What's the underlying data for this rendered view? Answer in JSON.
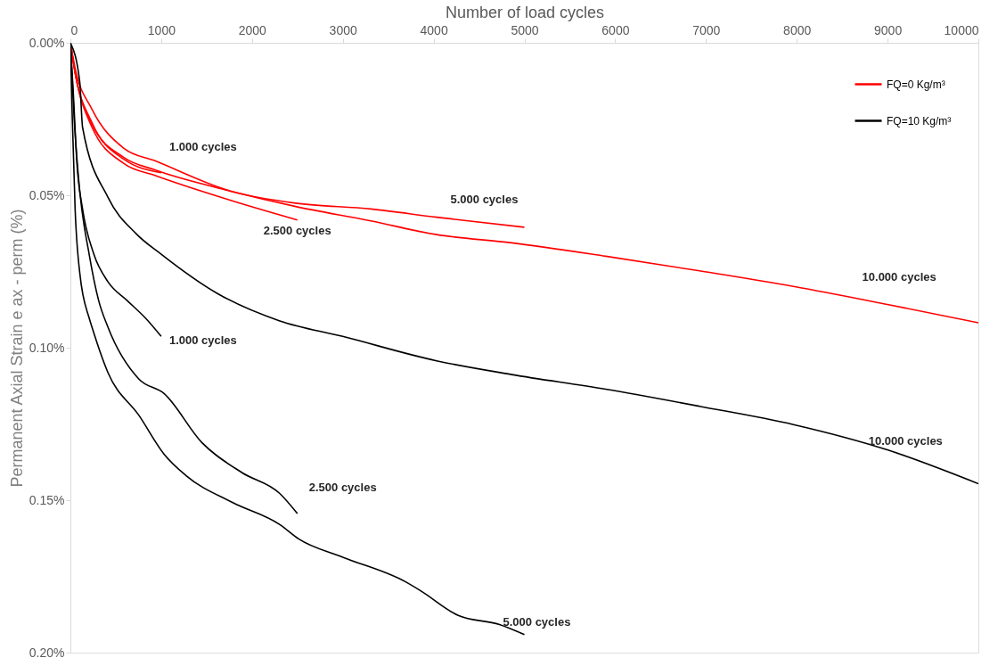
{
  "chart_data": {
    "type": "line",
    "xlabel": "Number of load cycles",
    "ylabel": "Permanent Axial Strain e ax - perm (%)",
    "xlim": [
      0,
      10000
    ],
    "xticks": [
      0,
      1000,
      2000,
      3000,
      4000,
      5000,
      6000,
      7000,
      8000,
      9000,
      10000
    ],
    "ylim": [
      0.2,
      0
    ],
    "yticks": [
      {
        "value": 0,
        "label": "0.00%"
      },
      {
        "value": 0.05,
        "label": "0.05%"
      },
      {
        "value": 0.1,
        "label": "0.10%"
      },
      {
        "value": 0.15,
        "label": "0.15%"
      },
      {
        "value": 0.2,
        "label": "0.20%"
      }
    ],
    "grid": false,
    "legend": "top right",
    "marker": "none",
    "line_style": "solid",
    "series": [
      {
        "name": "FQ=0 Kg/m³",
        "color": "#ff0000",
        "x": [
          0,
          52,
          238,
          589,
          931,
          1758,
          2482,
          3309,
          4033,
          5000
        ],
        "values": [
          0,
          0.0083,
          0.0218,
          0.0346,
          0.0387,
          0.0486,
          0.0526,
          0.0545,
          0.0572,
          0.0605
        ]
      },
      {
        "color": "#ff0000",
        "x": [
          0,
          52,
          238,
          589,
          931,
          1758,
          2482,
          3309,
          4033,
          4860,
          5895,
          6929,
          7963,
          8997,
          10000
        ],
        "values": [
          0,
          0.0098,
          0.0268,
          0.0376,
          0.0417,
          0.0486,
          0.0537,
          0.0584,
          0.0629,
          0.0656,
          0.07,
          0.0748,
          0.0799,
          0.0858,
          0.0918
        ]
      },
      {
        "color": "#ff0000",
        "x": [
          0,
          52,
          238,
          589,
          931,
          1758,
          2500
        ],
        "values": [
          0,
          0.0098,
          0.0277,
          0.0396,
          0.0435,
          0.0516,
          0.0581
        ]
      },
      {
        "color": "#ff0000",
        "x": [
          0,
          52,
          238,
          589,
          1000
        ],
        "values": [
          0,
          0.0098,
          0.0262,
          0.0382,
          0.0426
        ]
      },
      {
        "name": "FQ=10 Kg/m³",
        "color": "#000000",
        "x": [
          0,
          103,
          134,
          414,
          724,
          1003,
          1624,
          2306,
          2999,
          4033,
          4860,
          5895,
          6929,
          7963,
          8997,
          10000
        ],
        "values": [
          0,
          0.0128,
          0.0277,
          0.0507,
          0.0626,
          0.0694,
          0.0823,
          0.0912,
          0.0963,
          0.1043,
          0.1088,
          0.1136,
          0.1192,
          0.1252,
          0.1335,
          0.1446
        ]
      },
      {
        "color": "#000000",
        "x": [
          0,
          31,
          72,
          134,
          259,
          414,
          620,
          827,
          1000
        ],
        "values": [
          0,
          0.0158,
          0.0396,
          0.0545,
          0.0694,
          0.0784,
          0.0844,
          0.0903,
          0.0963
        ]
      },
      {
        "color": "#000000",
        "x": [
          0,
          41,
          103,
          207,
          310,
          414,
          755,
          1034,
          1448,
          1892,
          2306,
          2500
        ],
        "values": [
          0,
          0.0247,
          0.0486,
          0.0694,
          0.0844,
          0.0933,
          0.1103,
          0.1151,
          0.1311,
          0.141,
          0.1478,
          0.1544
        ]
      },
      {
        "color": "#000000",
        "x": [
          0,
          21,
          52,
          103,
          207,
          238,
          414,
          755,
          1034,
          1272,
          1789,
          2306,
          2513,
          2999,
          3692,
          3857,
          4271,
          4726,
          5000
        ],
        "values": [
          0,
          0.0247,
          0.0545,
          0.0754,
          0.0903,
          0.0933,
          0.1082,
          0.1222,
          0.135,
          0.1419,
          0.1508,
          0.158,
          0.1627,
          0.1687,
          0.1768,
          0.1797,
          0.1878,
          0.1908,
          0.1941
        ]
      }
    ],
    "annotations": [
      {
        "text": "1.000 cycles",
        "x": 1000,
        "y": 0.0426
      },
      {
        "text": "2.500 cycles",
        "x": 2500,
        "y": 0.0581
      },
      {
        "text": "5.000 cycles",
        "x": 5000,
        "y": 0.0605
      },
      "10.000 cycles",
      {
        "text": "1.000 cycles",
        "x": 1000,
        "y": 0.0963
      },
      {
        "text": "2.500 cycles",
        "x": 2500,
        "y": 0.1544
      },
      {
        "text": "5.000 cycles",
        "x": 5000,
        "y": 0.1941
      },
      "10.000 cycles"
    ]
  }
}
